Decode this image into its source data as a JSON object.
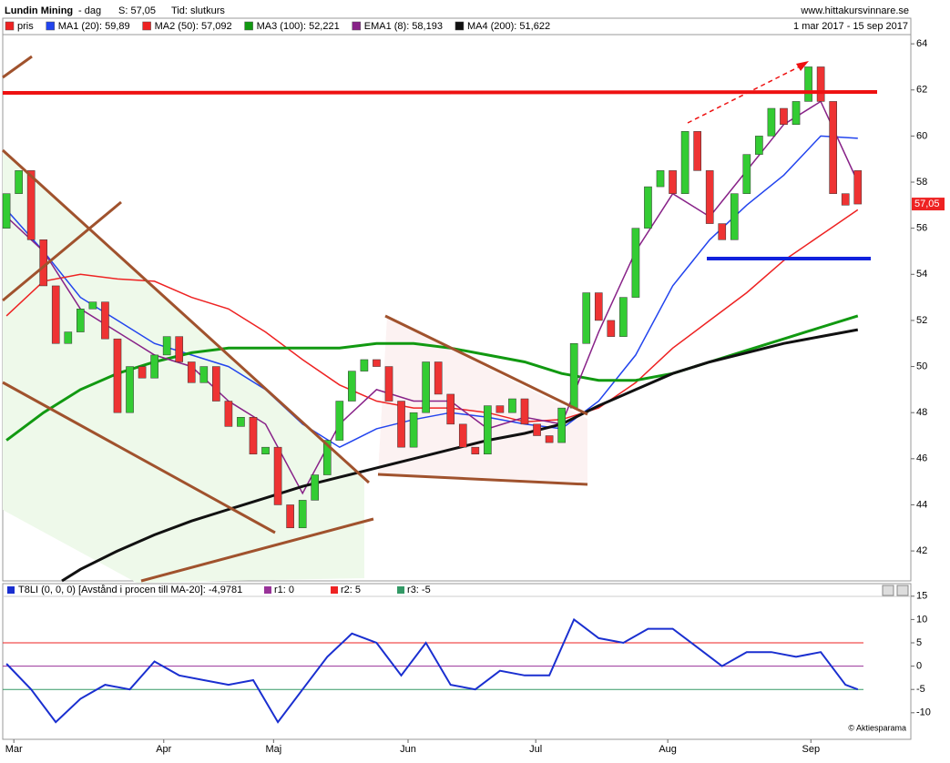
{
  "header": {
    "title": "Lundin Mining",
    "period": "- dag",
    "last": "S: 57,05",
    "mode": "Tid: slutkurs",
    "site": "www.hittakursvinnare.se",
    "range": "1 mar 2017 - 15 sep 2017"
  },
  "chart_data": [
    {
      "type": "candlestick",
      "price_name": "pris",
      "price_color": "#ee2222",
      "up_color": "#33cc33",
      "down_color": "#ee3333",
      "x": [
        0,
        2,
        4,
        6,
        8,
        10,
        12,
        14,
        16,
        18,
        20,
        22,
        24,
        26,
        28,
        30,
        32,
        34,
        36,
        38,
        40,
        42,
        44,
        46,
        48,
        50,
        52,
        54,
        56,
        58,
        60,
        62,
        64,
        66,
        68,
        70,
        72,
        74,
        76,
        78,
        80,
        82,
        84,
        86,
        88,
        90,
        92,
        94,
        96,
        98,
        100,
        102,
        104,
        106,
        108,
        110,
        112,
        114,
        116,
        118,
        120,
        122,
        124,
        126,
        128,
        130,
        132,
        134,
        136,
        138
      ],
      "open": [
        56,
        57.5,
        58.5,
        55.5,
        53.5,
        51,
        51.5,
        52.5,
        52.8,
        51.2,
        48,
        50,
        49.5,
        50.5,
        51.3,
        50.2,
        49.3,
        50,
        48.5,
        47.4,
        47.8,
        46.2,
        46.5,
        44,
        43,
        44.2,
        45.3,
        46.8,
        48.5,
        49.8,
        50.3,
        50,
        48.5,
        46.5,
        48,
        50.2,
        48.8,
        47.5,
        46.5,
        46.2,
        48.3,
        48,
        48.6,
        47.5,
        47,
        46.7,
        48.2,
        51,
        53.2,
        52,
        51.3,
        53,
        56,
        57.8,
        58.5,
        57.5,
        60.2,
        58.5,
        56.2,
        55.5,
        57.5,
        59.2,
        60,
        61.2,
        60.5,
        61.5,
        63,
        61.5,
        57.5,
        58.5
      ],
      "close": [
        57.5,
        58.5,
        55.5,
        53.5,
        51,
        51.5,
        52.5,
        52.8,
        51.2,
        48,
        50,
        49.5,
        50.5,
        51.3,
        50.2,
        49.3,
        50,
        48.5,
        47.4,
        47.8,
        46.2,
        46.5,
        44,
        43,
        44.2,
        45.3,
        46.8,
        48.5,
        49.8,
        50.3,
        50,
        48.5,
        46.5,
        48,
        50.2,
        48.8,
        47.5,
        46.5,
        46.2,
        48.3,
        48,
        48.6,
        47.5,
        47,
        46.7,
        48.2,
        51,
        53.2,
        52,
        51.3,
        53,
        56,
        57.8,
        58.5,
        57.5,
        60.2,
        58.5,
        56.2,
        55.5,
        57.5,
        59.2,
        60,
        61.2,
        60.5,
        61.5,
        63,
        61.5,
        57.5,
        57,
        57.05
      ],
      "price_label": {
        "value": 57.05,
        "label": "57,05"
      },
      "series": [
        {
          "name": "MA1 (20): 59,89",
          "color": "#2244ee",
          "x": [
            0,
            6,
            12,
            18,
            24,
            30,
            36,
            42,
            48,
            54,
            60,
            66,
            72,
            78,
            84,
            90,
            96,
            102,
            108,
            114,
            120,
            126,
            132,
            138
          ],
          "values": [
            56.8,
            55,
            53,
            52,
            51,
            50.5,
            50,
            49,
            47.5,
            46.5,
            47.3,
            47.7,
            48,
            47.8,
            47.5,
            47.3,
            48.5,
            50.5,
            53.5,
            55.5,
            57,
            58.3,
            60,
            59.9
          ]
        },
        {
          "name": "MA2 (50): 57,092",
          "color": "#ee2222",
          "x": [
            0,
            6,
            12,
            18,
            24,
            30,
            36,
            42,
            48,
            54,
            60,
            66,
            72,
            78,
            84,
            90,
            96,
            102,
            108,
            114,
            120,
            126,
            132,
            138
          ],
          "values": [
            52.2,
            53.7,
            54,
            53.8,
            53.7,
            53,
            52.5,
            51.5,
            50.3,
            49.2,
            48.5,
            48.2,
            48.2,
            48,
            47.6,
            47.7,
            48.2,
            49.3,
            50.8,
            52,
            53.2,
            54.6,
            55.7,
            56.8
          ]
        },
        {
          "name": "MA3 (100): 52,221",
          "color": "#119911",
          "x": [
            0,
            6,
            12,
            18,
            24,
            30,
            36,
            42,
            48,
            54,
            60,
            66,
            72,
            78,
            84,
            90,
            96,
            102,
            108,
            114,
            120,
            126,
            132,
            138
          ],
          "values": [
            46.8,
            48,
            49,
            49.7,
            50.2,
            50.6,
            50.8,
            50.8,
            50.8,
            50.8,
            51,
            51,
            50.8,
            50.5,
            50.2,
            49.7,
            49.4,
            49.4,
            49.7,
            50.2,
            50.7,
            51.2,
            51.7,
            52.2
          ]
        },
        {
          "name": "EMA1 (8): 58,193",
          "color": "#882288",
          "x": [
            0,
            6,
            12,
            18,
            24,
            30,
            36,
            42,
            48,
            54,
            60,
            66,
            72,
            78,
            84,
            90,
            96,
            102,
            108,
            114,
            120,
            126,
            132,
            138
          ],
          "values": [
            56.5,
            55,
            52.5,
            51.5,
            50.5,
            50,
            48.5,
            47.5,
            44.5,
            47.5,
            49,
            48.5,
            48.5,
            47.3,
            47.8,
            47.5,
            51.5,
            55,
            57.5,
            56.5,
            58.5,
            60.5,
            61.5,
            58
          ]
        },
        {
          "name": "MA4 (200): 51,622",
          "color": "#111111",
          "x": [
            9,
            12,
            18,
            24,
            30,
            36,
            42,
            48,
            54,
            60,
            66,
            72,
            78,
            84,
            90,
            96,
            102,
            108,
            114,
            120,
            126,
            132,
            138
          ],
          "values": [
            40.7,
            41.2,
            42,
            42.7,
            43.3,
            43.8,
            44.3,
            44.8,
            45.2,
            45.6,
            46,
            46.4,
            46.8,
            47.1,
            47.5,
            48.3,
            49,
            49.7,
            50.2,
            50.6,
            51,
            51.3,
            51.6
          ]
        }
      ],
      "xlim": [
        -0.6,
        146.6
      ],
      "ylim": [
        40.7,
        64.4
      ],
      "yticks": [
        42,
        44,
        46,
        48,
        50,
        52,
        54,
        56,
        58,
        60,
        62,
        64
      ],
      "xticks": [
        {
          "value": 1.2,
          "label": "Mar"
        },
        {
          "value": 25.5,
          "label": "Apr"
        },
        {
          "value": 43.3,
          "label": "Maj"
        },
        {
          "value": 65.1,
          "label": "Jun"
        },
        {
          "value": 85.8,
          "label": "Jul"
        },
        {
          "value": 107.2,
          "label": "Aug"
        },
        {
          "value": 130.4,
          "label": "Sep"
        }
      ]
    },
    {
      "type": "line",
      "title": "T8LI (0, 0, 0) [Avstånd i procen till MA-20]: -4,9781",
      "series": [
        {
          "color": "#1a2fd0",
          "x": [
            0,
            4,
            8,
            12,
            16,
            20,
            24,
            28,
            32,
            36,
            40,
            44,
            48,
            52,
            56,
            60,
            64,
            68,
            72,
            76,
            80,
            84,
            88,
            92,
            96,
            100,
            104,
            108,
            112,
            116,
            120,
            124,
            128,
            132,
            136,
            138
          ],
          "values": [
            0.5,
            -5,
            -12,
            -7,
            -4,
            -5,
            1,
            -2,
            -3,
            -4,
            -3,
            -12,
            -5,
            2,
            7,
            5,
            -2,
            5,
            -4,
            -5,
            -1,
            -2,
            -2,
            10,
            6,
            5,
            8,
            8,
            4,
            0,
            3,
            3,
            2,
            3,
            -4,
            -5
          ]
        }
      ],
      "references": [
        {
          "name": "r1: 0",
          "value": 0,
          "color": "#993399"
        },
        {
          "name": "r2: 5",
          "value": 5,
          "color": "#ee2222"
        },
        {
          "name": "r3: -5",
          "value": -5,
          "color": "#339966"
        }
      ],
      "xlim": [
        -0.6,
        146.6
      ],
      "ylim": [
        -15.7,
        17.5
      ],
      "yticks": [
        -10,
        -5,
        0,
        5,
        10,
        15
      ],
      "credit": "© Aktiesparama"
    }
  ]
}
